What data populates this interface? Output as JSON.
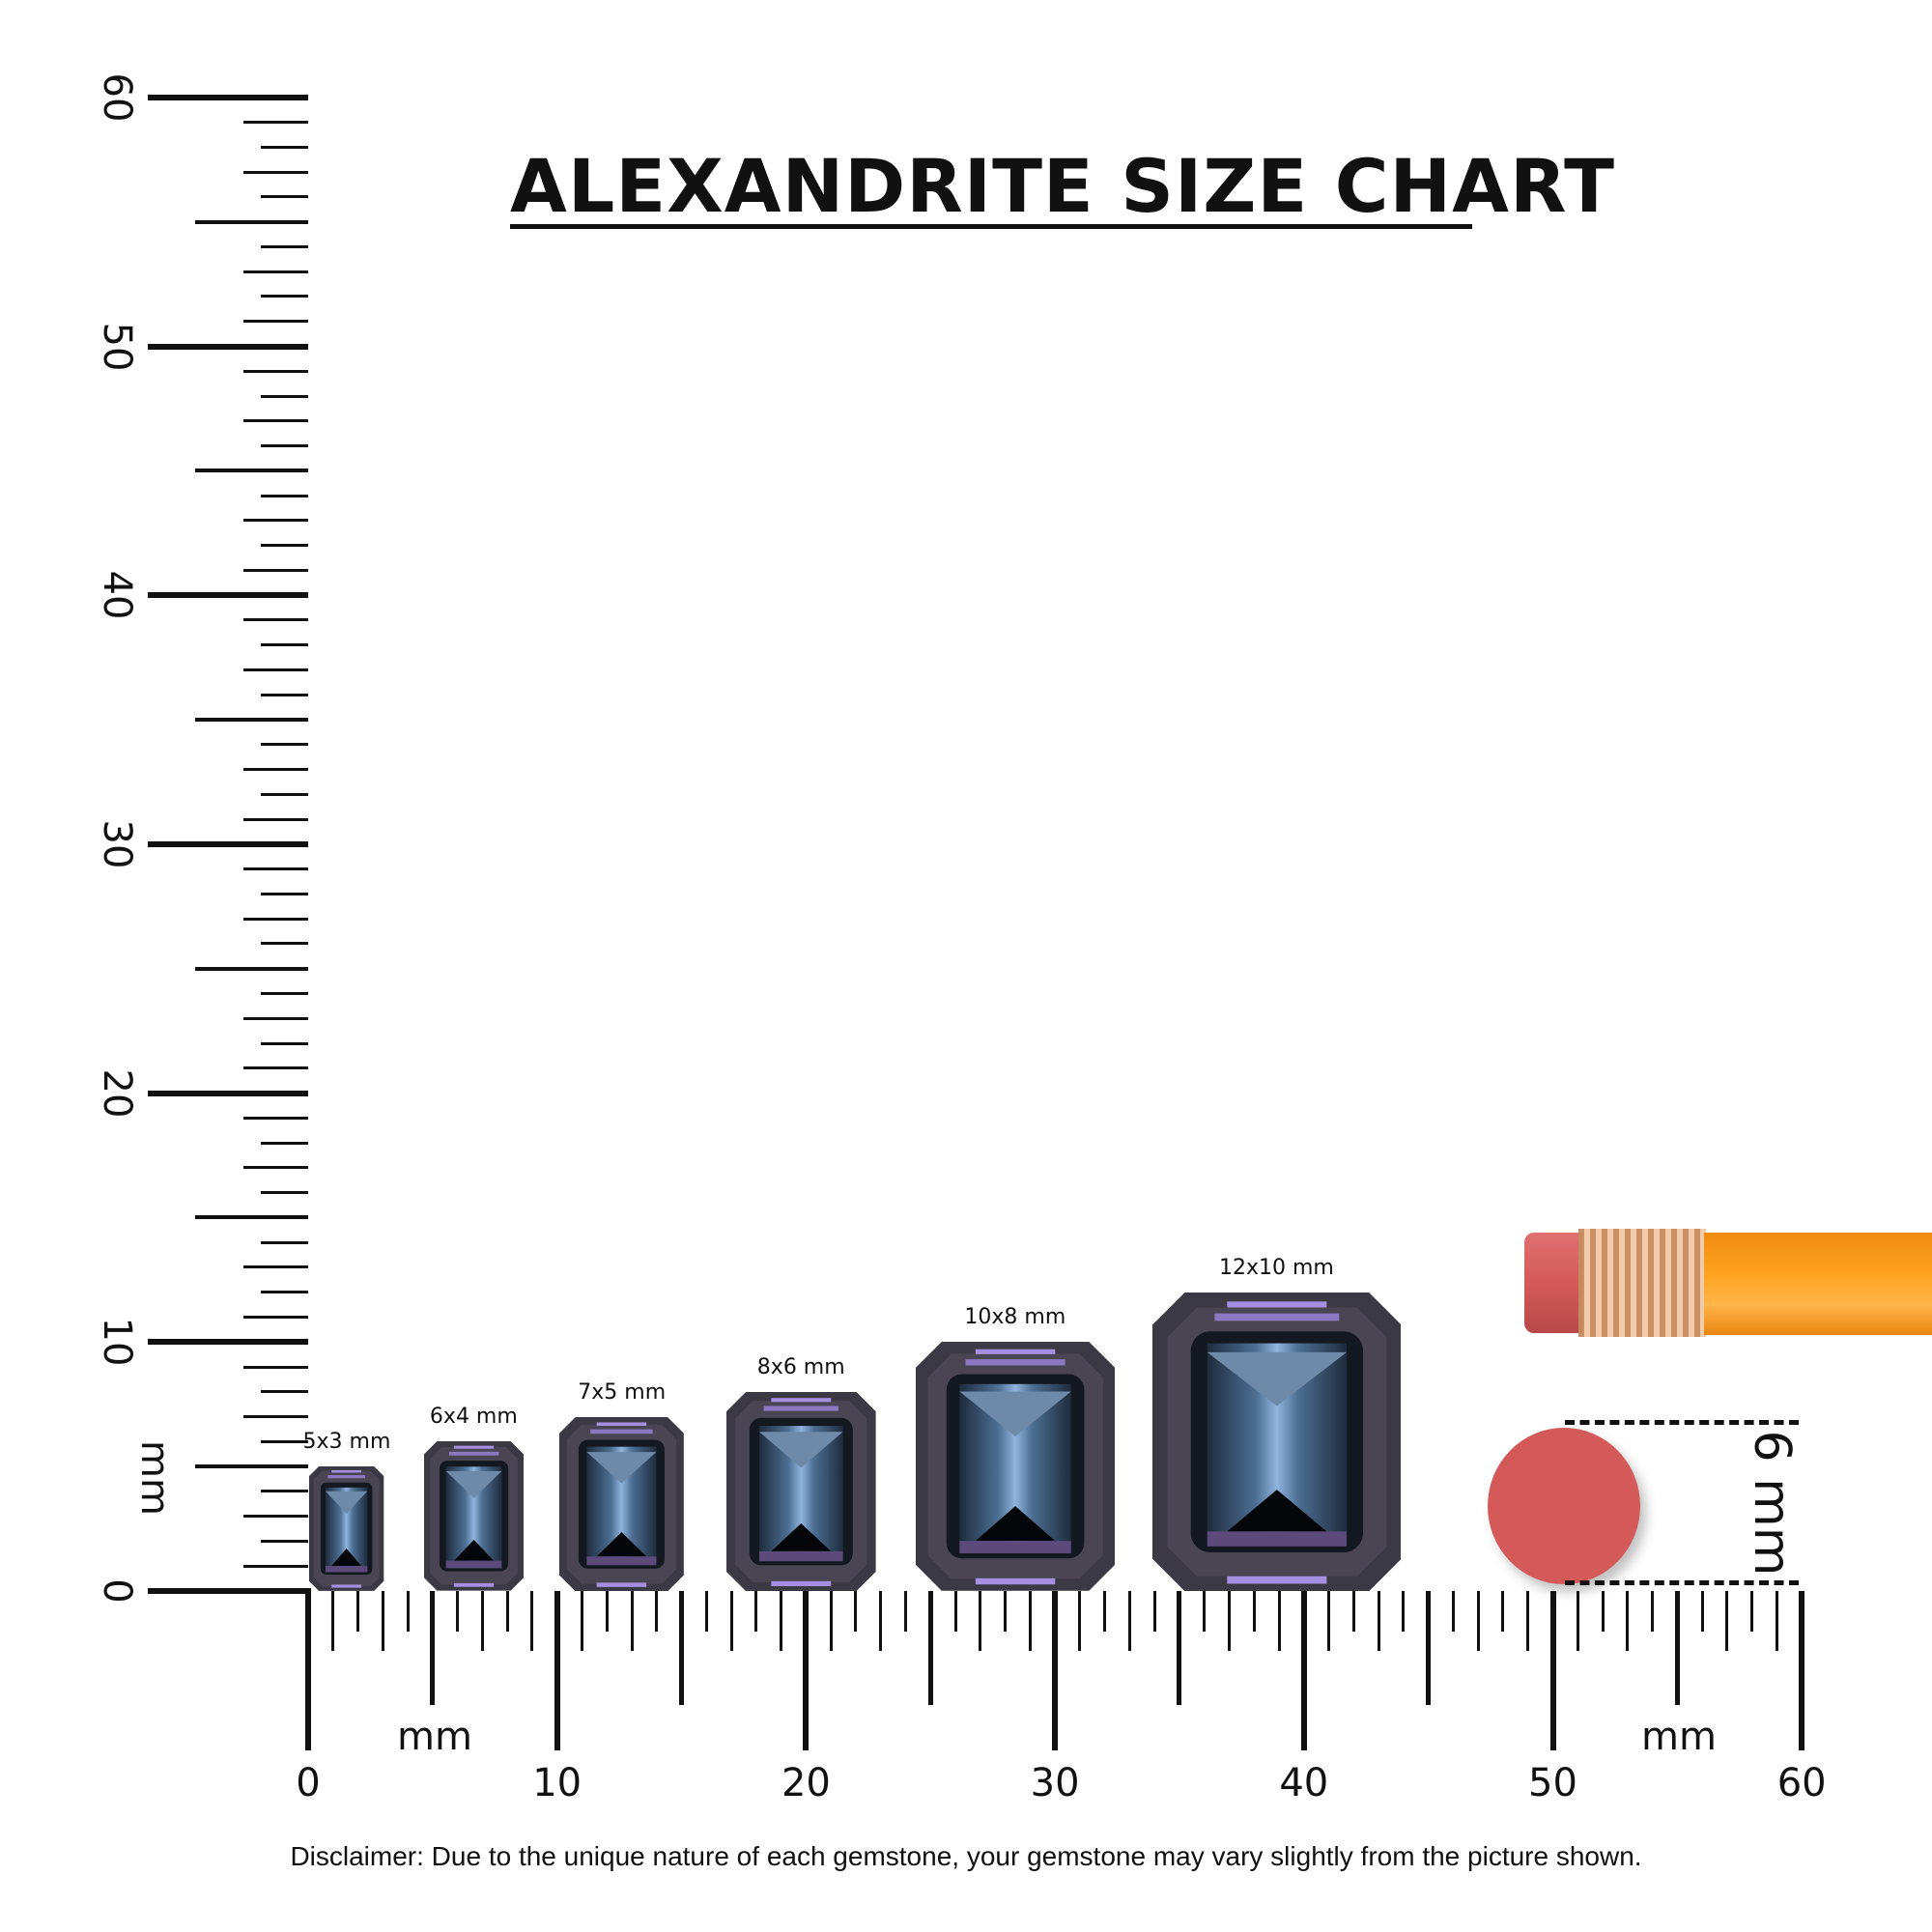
{
  "title": "ALEXANDRITE SIZE CHART",
  "vertical_ruler": {
    "unit": "mm",
    "labels": [
      "0",
      "10",
      "20",
      "30",
      "40",
      "50",
      "60"
    ],
    "max": 60
  },
  "horizontal_ruler": {
    "unit": "mm",
    "unit_right": "mm",
    "labels": [
      "0",
      "10",
      "20",
      "30",
      "40",
      "50",
      "60"
    ],
    "max": 60
  },
  "gems": [
    {
      "label": "5x3 mm",
      "length": 5,
      "width": 3,
      "start": 0.05
    },
    {
      "label": "6x4 mm",
      "length": 6,
      "width": 4,
      "start": 4.65
    },
    {
      "label": "7x5 mm",
      "length": 7,
      "width": 5,
      "start": 10.1
    },
    {
      "label": "8x6 mm",
      "length": 8,
      "width": 6,
      "start": 16.8
    },
    {
      "label": "10x8 mm",
      "length": 10,
      "width": 8,
      "start": 24.4
    },
    {
      "label": "12x10 mm",
      "length": 12,
      "width": 10,
      "start": 33.9
    }
  ],
  "reference": {
    "label": "6 mm",
    "item": "pencil eraser"
  },
  "colors": {
    "gem_dark": "#3b3944",
    "gem_blue": "#8fb4de",
    "gem_violet": "#a58fe0",
    "eraser": "#d45a5a",
    "pencil": "#f7941d",
    "ferrule": "#d9a47a"
  },
  "disclaimer": "Disclaimer: Due to the unique nature of each gemstone, your gemstone may vary slightly from the picture shown."
}
